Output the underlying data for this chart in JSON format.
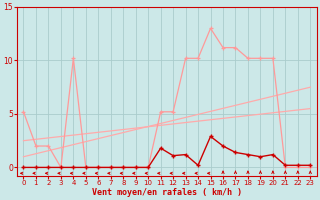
{
  "background_color": "#cce8e8",
  "grid_color": "#aacccc",
  "xlabel": "Vent moyen/en rafales ( km/h )",
  "xlim": [
    -0.5,
    23.5
  ],
  "ylim": [
    -0.8,
    15
  ],
  "yticks": [
    0,
    5,
    10,
    15
  ],
  "xticks": [
    0,
    1,
    2,
    3,
    4,
    5,
    6,
    7,
    8,
    9,
    10,
    11,
    12,
    13,
    14,
    15,
    16,
    17,
    18,
    19,
    20,
    21,
    22,
    23
  ],
  "line1_x": [
    0,
    1,
    2,
    3,
    4,
    5,
    6,
    7,
    8,
    9,
    10,
    11,
    12,
    13,
    14,
    15,
    16,
    17,
    18,
    19,
    20,
    21,
    22,
    23
  ],
  "line1_y": [
    5.2,
    2.0,
    2.0,
    0.0,
    10.2,
    0.0,
    0.0,
    0.0,
    0.0,
    0.0,
    0.0,
    5.2,
    5.2,
    10.2,
    10.2,
    13.0,
    11.2,
    11.2,
    10.2,
    10.2,
    10.2,
    0.0,
    0.0,
    0.0
  ],
  "line1_color": "#ff9999",
  "line2_x": [
    0,
    1,
    2,
    3,
    4,
    5,
    6,
    7,
    8,
    9,
    10,
    11,
    12,
    13,
    14,
    15,
    16,
    17,
    18,
    19,
    20,
    21,
    22,
    23
  ],
  "line2_y": [
    0.0,
    0.0,
    0.0,
    0.0,
    0.0,
    0.0,
    0.0,
    0.0,
    0.0,
    0.0,
    0.0,
    1.8,
    1.1,
    1.2,
    0.2,
    2.9,
    2.0,
    1.4,
    1.2,
    1.0,
    1.2,
    0.2,
    0.2,
    0.2
  ],
  "line2_color": "#cc0000",
  "line3_x": [
    0,
    23
  ],
  "line3_y": [
    1.0,
    7.5
  ],
  "line3_color": "#ffaaaa",
  "line4_x": [
    0,
    23
  ],
  "line4_y": [
    2.5,
    5.5
  ],
  "line4_color": "#ffaaaa",
  "arrow_left_indices": [
    0,
    1,
    2,
    3,
    4,
    5,
    6,
    7,
    8,
    9,
    10,
    11,
    12,
    13,
    14,
    15
  ],
  "arrow_up_indices": [
    16,
    17,
    18,
    19,
    20,
    21,
    22,
    23
  ]
}
